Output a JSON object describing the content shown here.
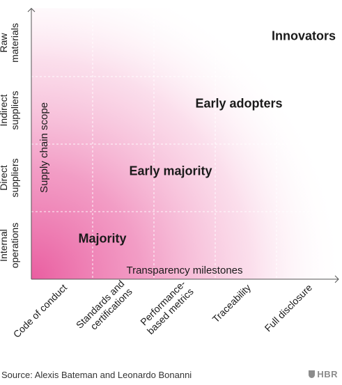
{
  "chart_data": {
    "type": "heatmap",
    "xlabel": "Transparency milestones",
    "ylabel": "Supply chain scope",
    "x_categories": [
      "Code of conduct",
      "Standards and certifications",
      "Performance-based metrics",
      "Traceability",
      "Full disclosure"
    ],
    "y_categories": [
      "Internal operations",
      "Direct suppliers",
      "Indirect suppliers",
      "Raw materials"
    ],
    "segments": [
      {
        "label": "Innovators",
        "x": 5,
        "y": 4
      },
      {
        "label": "Early adopters",
        "x": 4,
        "y": 3
      },
      {
        "label": "Early majority",
        "x": 3,
        "y": 2
      },
      {
        "label": "Majority",
        "x": 2,
        "y": 1
      }
    ],
    "grid": true,
    "colors": {
      "gradient_strong": "#e8559b",
      "gradient_light": "#fbe3ef",
      "background": "#ffffff",
      "axis": "#555555"
    }
  },
  "footer": {
    "source": "Source: Alexis Bateman and Leonardo Bonanni",
    "brand": "HBR"
  }
}
